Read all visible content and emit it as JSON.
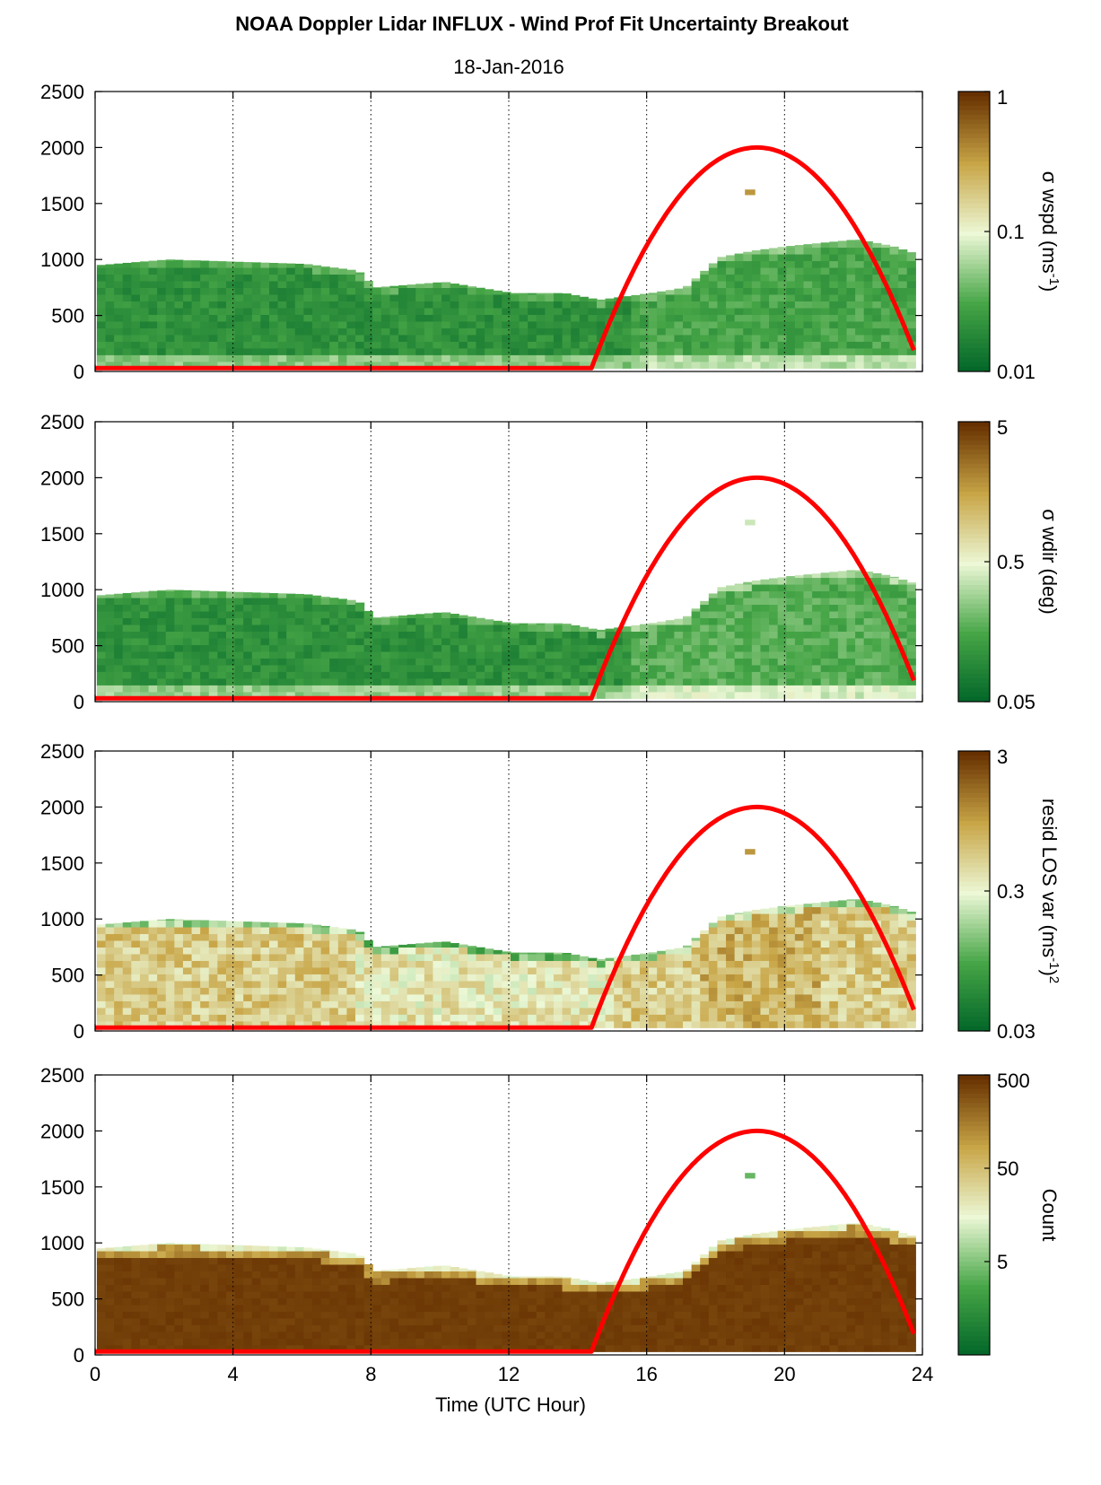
{
  "figure": {
    "title": "NOAA Doppler Lidar INFLUX - Wind Prof Fit Uncertainty Breakout",
    "subtitle": "18-Jan-2016",
    "xlabel": "Time (UTC Hour)"
  },
  "chart_data": [
    {
      "type": "heatmap",
      "colorbar_label": "σ wspd (ms",
      "colorbar_label_sup": "-1",
      "colorbar_label_tail": ")",
      "colorbar_scale": "log",
      "colorbar_range": [
        0.01,
        1
      ],
      "colorbar_ticks": [
        "1",
        "0.1",
        "0.01"
      ],
      "ylim": [
        0,
        2500
      ],
      "yticks": [
        "0",
        "500",
        "1000",
        "1500",
        "2000",
        "2500"
      ],
      "xlim": [
        0,
        24
      ],
      "xticks": [
        "0",
        "4",
        "8",
        "12",
        "16",
        "20",
        "24"
      ],
      "grid": "vertical dotted",
      "overlay_line_color": "#ff0000"
    },
    {
      "type": "heatmap",
      "colorbar_label": "σ wdir (deg)",
      "colorbar_label_sup": "",
      "colorbar_label_tail": "",
      "colorbar_scale": "log",
      "colorbar_range": [
        0.05,
        5
      ],
      "colorbar_ticks": [
        "5",
        "0.5",
        "0.05"
      ],
      "ylim": [
        0,
        2500
      ],
      "yticks": [
        "0",
        "500",
        "1000",
        "1500",
        "2000",
        "2500"
      ],
      "xlim": [
        0,
        24
      ],
      "xticks": [
        "0",
        "4",
        "8",
        "12",
        "16",
        "20",
        "24"
      ],
      "grid": "vertical dotted",
      "overlay_line_color": "#ff0000"
    },
    {
      "type": "heatmap",
      "colorbar_label": "resid LOS var (ms",
      "colorbar_label_sup": "-1",
      "colorbar_label_tail": ")",
      "colorbar_label_sup2": "2",
      "colorbar_scale": "log",
      "colorbar_range": [
        0.03,
        3
      ],
      "colorbar_ticks": [
        "3",
        "0.3",
        "0.03"
      ],
      "ylim": [
        0,
        2500
      ],
      "yticks": [
        "0",
        "500",
        "1000",
        "1500",
        "2000",
        "2500"
      ],
      "xlim": [
        0,
        24
      ],
      "xticks": [
        "0",
        "4",
        "8",
        "12",
        "16",
        "20",
        "24"
      ],
      "grid": "vertical dotted",
      "overlay_line_color": "#ff0000"
    },
    {
      "type": "heatmap",
      "colorbar_label": "Count",
      "colorbar_label_sup": "",
      "colorbar_label_tail": "",
      "colorbar_scale": "log",
      "colorbar_range": [
        0.5,
        500
      ],
      "colorbar_ticks": [
        "500",
        "50",
        "5"
      ],
      "ylim": [
        0,
        2500
      ],
      "yticks": [
        "0",
        "500",
        "1000",
        "1500",
        "2000",
        "2500"
      ],
      "xlim": [
        0,
        24
      ],
      "xticks": [
        "0",
        "4",
        "8",
        "12",
        "16",
        "20",
        "24"
      ],
      "grid": "vertical dotted",
      "overlay_line_color": "#ff0000"
    }
  ],
  "data_extent": {
    "top_boundary": {
      "x": [
        0,
        2,
        4,
        6,
        7.5,
        8,
        10,
        12,
        13.5,
        14.5,
        16,
        17,
        18,
        19,
        20,
        21,
        22,
        23,
        23.7
      ],
      "y": [
        950,
        1000,
        980,
        960,
        900,
        750,
        800,
        700,
        700,
        640,
        700,
        750,
        1020,
        1080,
        1120,
        1150,
        1180,
        1120,
        1050
      ]
    },
    "isolated_cell": {
      "x": 19,
      "y": 1600
    }
  },
  "overlay_curve": {
    "description_free": true,
    "x": [
      0,
      14.4,
      15,
      16,
      17,
      18,
      19.2,
      20,
      21,
      22,
      23,
      23.8
    ],
    "y": [
      30,
      30,
      500,
      1150,
      1620,
      1900,
      2000,
      1940,
      1700,
      1280,
      700,
      150
    ]
  }
}
